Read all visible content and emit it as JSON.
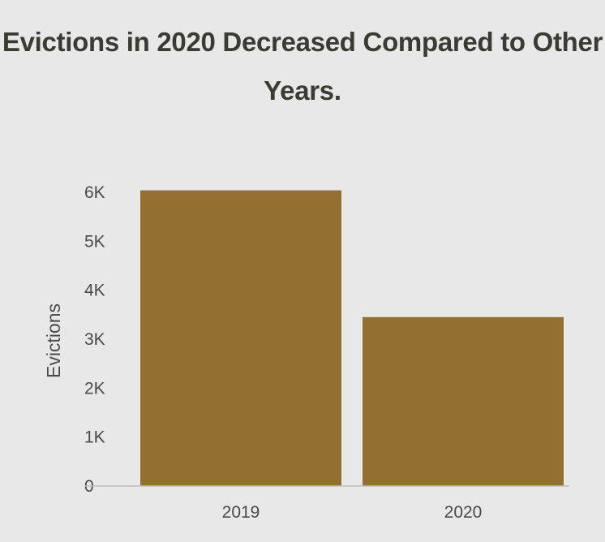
{
  "chart_data": {
    "type": "bar",
    "title": "Evictions in 2020 Decreased Compared to Other Years.",
    "xlabel": "",
    "ylabel": "Evictions",
    "categories": [
      "2019",
      "2020"
    ],
    "values": [
      6040,
      3450
    ],
    "ylim": [
      0,
      6000
    ],
    "yticks": [
      {
        "value": 0,
        "label": "0"
      },
      {
        "value": 1000,
        "label": "1K"
      },
      {
        "value": 2000,
        "label": "2K"
      },
      {
        "value": 3000,
        "label": "3K"
      },
      {
        "value": 4000,
        "label": "4K"
      },
      {
        "value": 5000,
        "label": "5K"
      },
      {
        "value": 6000,
        "label": "6K"
      }
    ],
    "bar_color": "#936f32",
    "grid": false,
    "legend": "none"
  }
}
